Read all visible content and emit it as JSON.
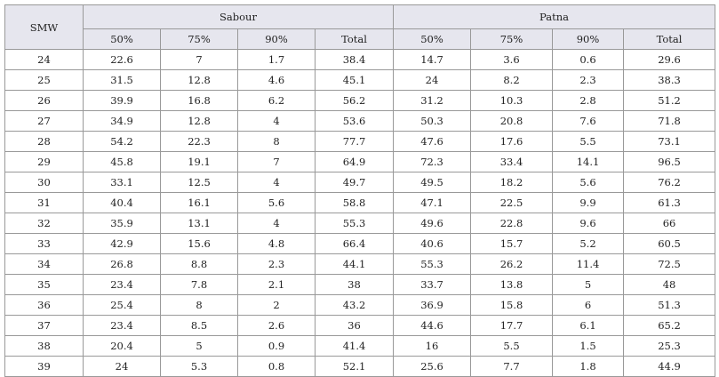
{
  "table": {
    "header": {
      "smw": "SMW",
      "groups": [
        "Sabour",
        "Patna"
      ],
      "subcols": [
        "50%",
        "75%",
        "90%",
        "Total"
      ]
    },
    "rows": [
      [
        "24",
        "22.6",
        "7",
        "1.7",
        "38.4",
        "14.7",
        "3.6",
        "0.6",
        "29.6"
      ],
      [
        "25",
        "31.5",
        "12.8",
        "4.6",
        "45.1",
        "24",
        "8.2",
        "2.3",
        "38.3"
      ],
      [
        "26",
        "39.9",
        "16.8",
        "6.2",
        "56.2",
        "31.2",
        "10.3",
        "2.8",
        "51.2"
      ],
      [
        "27",
        "34.9",
        "12.8",
        "4",
        "53.6",
        "50.3",
        "20.8",
        "7.6",
        "71.8"
      ],
      [
        "28",
        "54.2",
        "22.3",
        "8",
        "77.7",
        "47.6",
        "17.6",
        "5.5",
        "73.1"
      ],
      [
        "29",
        "45.8",
        "19.1",
        "7",
        "64.9",
        "72.3",
        "33.4",
        "14.1",
        "96.5"
      ],
      [
        "30",
        "33.1",
        "12.5",
        "4",
        "49.7",
        "49.5",
        "18.2",
        "5.6",
        "76.2"
      ],
      [
        "31",
        "40.4",
        "16.1",
        "5.6",
        "58.8",
        "47.1",
        "22.5",
        "9.9",
        "61.3"
      ],
      [
        "32",
        "35.9",
        "13.1",
        "4",
        "55.3",
        "49.6",
        "22.8",
        "9.6",
        "66"
      ],
      [
        "33",
        "42.9",
        "15.6",
        "4.8",
        "66.4",
        "40.6",
        "15.7",
        "5.2",
        "60.5"
      ],
      [
        "34",
        "26.8",
        "8.8",
        "2.3",
        "44.1",
        "55.3",
        "26.2",
        "11.4",
        "72.5"
      ],
      [
        "35",
        "23.4",
        "7.8",
        "2.1",
        "38",
        "33.7",
        "13.8",
        "5",
        "48"
      ],
      [
        "36",
        "25.4",
        "8",
        "2",
        "43.2",
        "36.9",
        "15.8",
        "6",
        "51.3"
      ],
      [
        "37",
        "23.4",
        "8.5",
        "2.6",
        "36",
        "44.6",
        "17.7",
        "6.1",
        "65.2"
      ],
      [
        "38",
        "20.4",
        "5",
        "0.9",
        "41.4",
        "16",
        "5.5",
        "1.5",
        "25.3"
      ],
      [
        "39",
        "24",
        "5.3",
        "0.8",
        "52.1",
        "25.6",
        "7.7",
        "1.8",
        "44.9"
      ]
    ]
  }
}
